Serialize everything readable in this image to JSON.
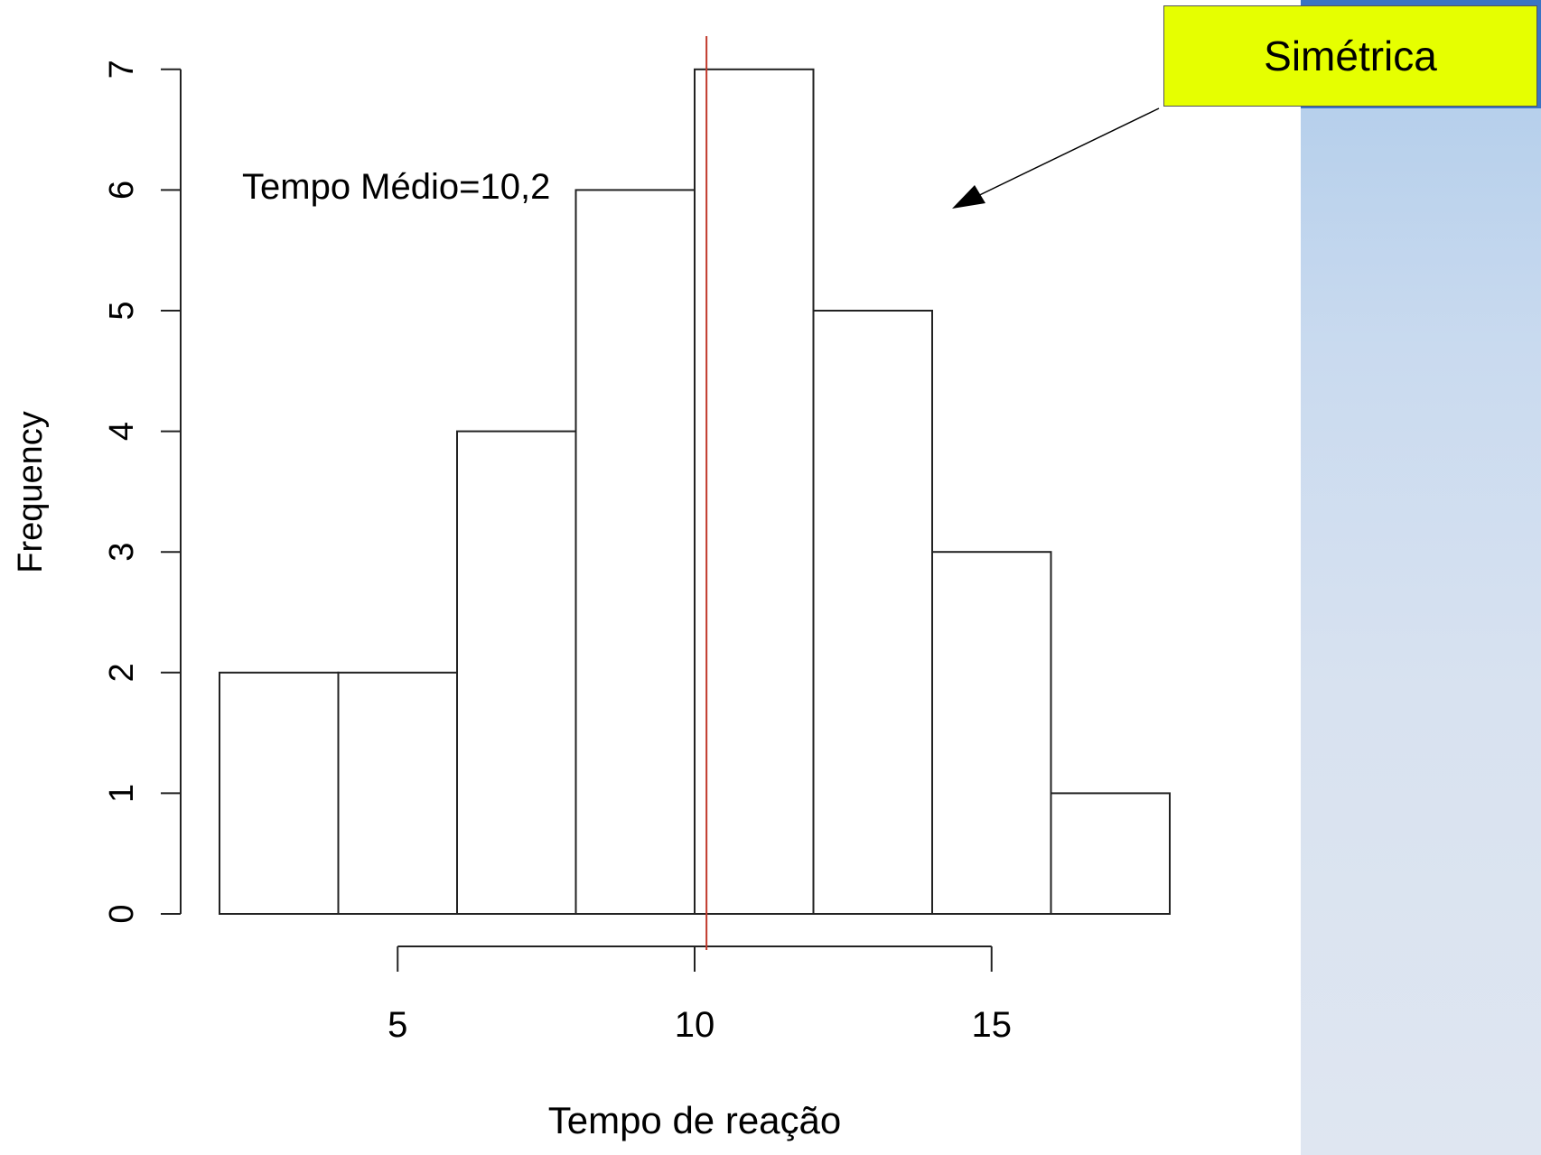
{
  "chart_data": {
    "type": "histogram",
    "bins": [
      [
        2,
        4
      ],
      [
        4,
        6
      ],
      [
        6,
        8
      ],
      [
        8,
        10
      ],
      [
        10,
        12
      ],
      [
        12,
        14
      ],
      [
        14,
        16
      ],
      [
        16,
        18
      ]
    ],
    "values": [
      2,
      2,
      4,
      6,
      7,
      5,
      3,
      1
    ],
    "xlabel": "Tempo de reação",
    "ylabel": "Frequency",
    "xticks": [
      5,
      10,
      15
    ],
    "yticks": [
      0,
      1,
      2,
      3,
      4,
      5,
      6,
      7
    ],
    "xlim": [
      2,
      18
    ],
    "ylim": [
      0,
      7
    ],
    "mean_line": {
      "x": 10.2,
      "color": "#c0392b"
    },
    "annotation": "Tempo Médio=10,2",
    "grid": false
  },
  "callout": {
    "label": "Simétrica",
    "background": "#e6ff00"
  }
}
